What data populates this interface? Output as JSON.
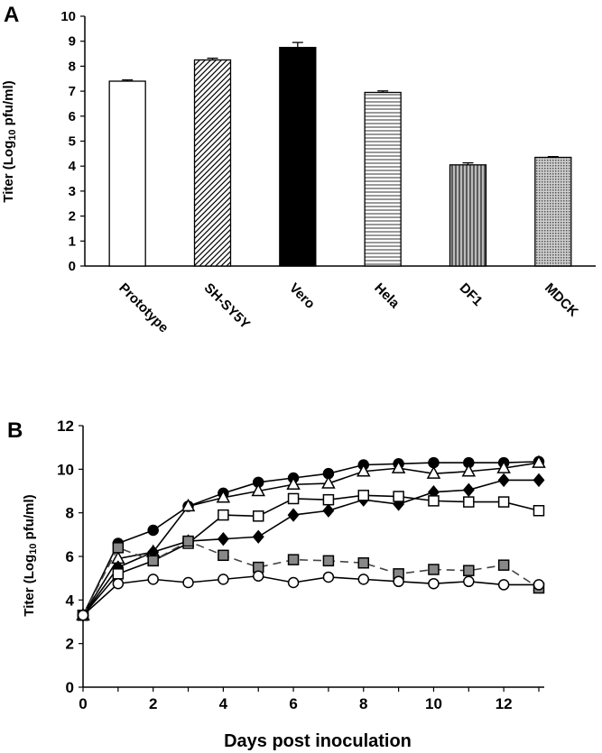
{
  "chart_data": [
    {
      "panel_label": "A",
      "type": "bar",
      "ylabel": "Titer (Log10 pfu/ml)",
      "ylabel_main": "Titer (Log",
      "ylabel_sub": "10",
      "ylabel_end": " pfu/ml)",
      "xlabel": "",
      "ylim": [
        0,
        10
      ],
      "yticks": [
        0,
        1,
        2,
        3,
        4,
        5,
        6,
        7,
        8,
        9,
        10
      ],
      "categories": [
        "Prototype",
        "SH-SY5Y",
        "Vero",
        "Hela",
        "DF1",
        "MDCK"
      ],
      "values": [
        7.4,
        8.25,
        8.75,
        6.95,
        4.05,
        4.35
      ],
      "errors": [
        0.05,
        0.07,
        0.2,
        0.06,
        0.08,
        0.03
      ],
      "fills": [
        "white",
        "diagonal",
        "black",
        "horizontal",
        "vertical",
        "dotted"
      ],
      "grid": false
    },
    {
      "panel_label": "B",
      "type": "line",
      "ylabel": "Titer (Log10 pfu/ml)",
      "ylabel_main": "Titer (Log",
      "ylabel_sub": "10",
      "ylabel_end": " pfu/ml)",
      "xlabel": "Days post inoculation",
      "ylim": [
        0,
        12
      ],
      "xlim": [
        0,
        13
      ],
      "yticks": [
        0,
        2,
        4,
        6,
        8,
        10,
        12
      ],
      "xticks": [
        0,
        2,
        4,
        6,
        8,
        10,
        12
      ],
      "grid": false,
      "x": [
        0,
        1,
        2,
        3,
        4,
        5,
        6,
        7,
        8,
        9,
        10,
        11,
        12,
        13
      ],
      "series": [
        {
          "marker": "filled-circle",
          "line": "solid",
          "values": [
            3.3,
            6.6,
            7.2,
            8.3,
            8.9,
            9.4,
            9.6,
            9.8,
            10.2,
            10.25,
            10.3,
            10.3,
            10.3,
            10.35
          ]
        },
        {
          "marker": "open-triangle",
          "line": "solid",
          "values": [
            3.3,
            5.9,
            6.2,
            8.3,
            8.7,
            9.0,
            9.3,
            9.35,
            9.9,
            10.05,
            9.8,
            9.9,
            10.05,
            10.3
          ]
        },
        {
          "marker": "filled-diamond",
          "line": "solid",
          "values": [
            3.3,
            5.5,
            6.2,
            6.7,
            6.8,
            6.9,
            7.9,
            8.1,
            8.6,
            8.4,
            8.95,
            9.05,
            9.5,
            9.5
          ]
        },
        {
          "marker": "open-square",
          "line": "solid",
          "values": [
            3.3,
            5.2,
            5.8,
            6.6,
            7.9,
            7.85,
            8.65,
            8.6,
            8.8,
            8.75,
            8.55,
            8.5,
            8.5,
            8.1
          ]
        },
        {
          "marker": "gray-square",
          "line": "dashed",
          "values": [
            3.3,
            6.4,
            5.8,
            6.7,
            6.05,
            5.5,
            5.85,
            5.8,
            5.7,
            5.2,
            5.4,
            5.35,
            5.6,
            4.55
          ]
        },
        {
          "marker": "open-circle",
          "line": "solid",
          "values": [
            3.3,
            4.75,
            4.95,
            4.8,
            4.95,
            5.1,
            4.8,
            5.05,
            4.95,
            4.85,
            4.75,
            4.85,
            4.7,
            4.7
          ]
        }
      ]
    }
  ]
}
